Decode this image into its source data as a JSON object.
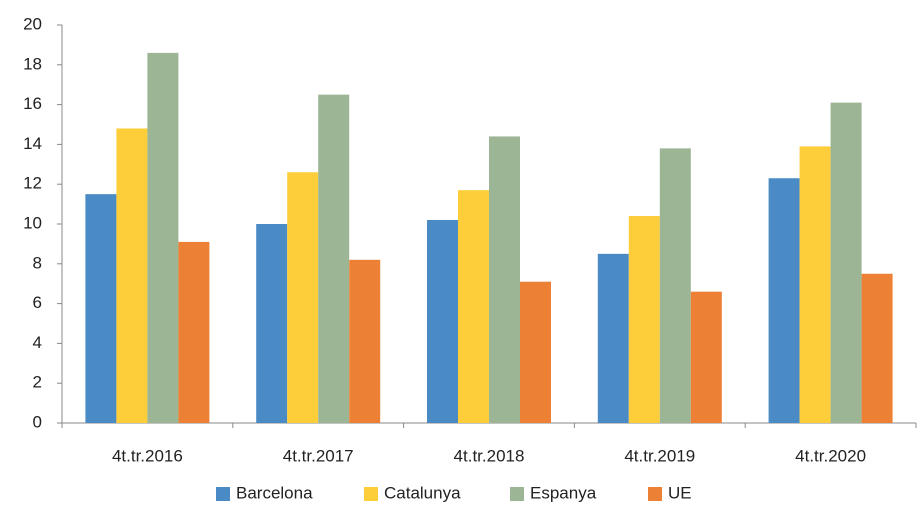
{
  "chart_data": {
    "type": "bar",
    "categories": [
      "4t.tr.2016",
      "4t.tr.2017",
      "4t.tr.2018",
      "4t.tr.2019",
      "4t.tr.2020"
    ],
    "series": [
      {
        "name": "Barcelona",
        "color": "#4a8bc6",
        "values": [
          11.5,
          10.0,
          10.2,
          8.5,
          12.3
        ]
      },
      {
        "name": "Catalunya",
        "color": "#fdcd3a",
        "values": [
          14.8,
          12.6,
          11.7,
          10.4,
          13.9
        ]
      },
      {
        "name": "Espanya",
        "color": "#9bb595",
        "values": [
          18.6,
          16.5,
          14.4,
          13.8,
          16.1
        ]
      },
      {
        "name": "UE",
        "color": "#ec8135",
        "values": [
          9.1,
          8.2,
          7.1,
          6.6,
          7.5
        ]
      }
    ],
    "ylim": [
      0,
      20
    ],
    "yticks": [
      0,
      2,
      4,
      6,
      8,
      10,
      12,
      14,
      16,
      18,
      20
    ],
    "grid": false,
    "legend": "bottom"
  }
}
